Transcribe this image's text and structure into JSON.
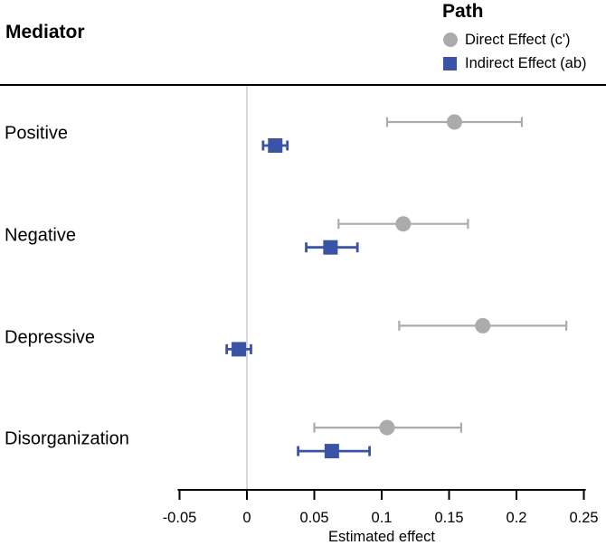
{
  "figure": {
    "y_axis_title": "Mediator",
    "background": "#ffffff"
  },
  "legend": {
    "title": "Path",
    "items": [
      {
        "label": "Direct Effect (c')",
        "marker": "circle-icon",
        "color": "#ABABAB"
      },
      {
        "label": "Indirect Effect (ab)",
        "marker": "square-icon",
        "color": "#3A53A4"
      }
    ]
  },
  "chart_data": {
    "type": "scatter",
    "subtype": "forest-dot-whisker",
    "title": "",
    "y_axis_title": "Mediator",
    "xlabel": "Estimated effect",
    "categories": [
      "Positive",
      "Negative",
      "Depressive",
      "Disorganization"
    ],
    "series": [
      {
        "name": "Direct Effect (c')",
        "marker": "circle",
        "color": "#ABABAB",
        "values": [
          0.154,
          0.116,
          0.175,
          0.104
        ],
        "ci_low": [
          0.104,
          0.068,
          0.113,
          0.05
        ],
        "ci_high": [
          0.204,
          0.164,
          0.237,
          0.159
        ]
      },
      {
        "name": "Indirect Effect (ab)",
        "marker": "square",
        "color": "#3A53A4",
        "values": [
          0.021,
          0.062,
          -0.006,
          0.063
        ],
        "ci_low": [
          0.012,
          0.044,
          -0.015,
          0.038
        ],
        "ci_high": [
          0.03,
          0.082,
          0.003,
          0.091
        ]
      }
    ],
    "x_tick_labels": [
      "-0.05",
      "0",
      "0.05",
      "0.1",
      "0.15",
      "0.2",
      "0.25"
    ],
    "x_tick_values": [
      -0.05,
      0,
      0.05,
      0.1,
      0.15,
      0.2,
      0.25
    ],
    "xlim": [
      -0.05,
      0.25
    ],
    "reference_line_x": 0,
    "reference_line_color": "#D7D7D7",
    "axis_color": "#000000",
    "grid": false,
    "legend_position": "top-right"
  }
}
